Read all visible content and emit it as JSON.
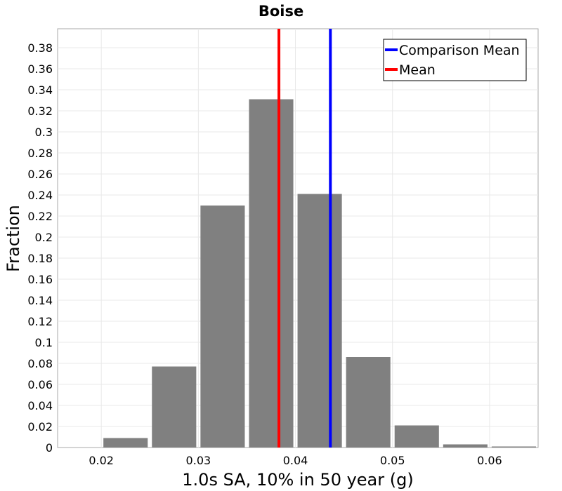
{
  "chart_data": {
    "type": "bar",
    "title": "Boise",
    "xlabel": "1.0s SA, 10% in 50 year (g)",
    "ylabel": "Fraction",
    "xlim": [
      0.0155,
      0.065
    ],
    "ylim": [
      0,
      0.398
    ],
    "xticks": [
      "0.02",
      "0.03",
      "0.04",
      "0.05",
      "0.06"
    ],
    "xtick_values": [
      0.02,
      0.03,
      0.04,
      0.05,
      0.06
    ],
    "yticks": [
      "0",
      "0.02",
      "0.04",
      "0.06",
      "0.08",
      "0.1",
      "0.12",
      "0.14",
      "0.16",
      "0.18",
      "0.2",
      "0.22",
      "0.24",
      "0.26",
      "0.28",
      "0.3",
      "0.32",
      "0.34",
      "0.36",
      "0.38"
    ],
    "ytick_values": [
      0,
      0.02,
      0.04,
      0.06,
      0.08,
      0.1,
      0.12,
      0.14,
      0.16,
      0.18,
      0.2,
      0.22,
      0.24,
      0.26,
      0.28,
      0.3,
      0.32,
      0.34,
      0.36,
      0.38
    ],
    "bin_width": 0.005,
    "bin_centers": [
      0.0175,
      0.0225,
      0.0275,
      0.0325,
      0.0375,
      0.0425,
      0.0475,
      0.0525,
      0.0575,
      0.0625
    ],
    "values": [
      0.0,
      0.009,
      0.077,
      0.23,
      0.331,
      0.241,
      0.086,
      0.021,
      0.003,
      0.001
    ],
    "bar_color": "#808080",
    "grid": true,
    "vlines": [
      {
        "name": "Comparison Mean",
        "x": 0.0436,
        "color": "#0000ff"
      },
      {
        "name": "Mean",
        "x": 0.0383,
        "color": "#ff0000"
      }
    ],
    "legend": {
      "placement": "top-right",
      "entries": [
        {
          "label": "Comparison Mean",
          "color": "#0000ff"
        },
        {
          "label": "Mean",
          "color": "#ff0000"
        }
      ]
    }
  }
}
